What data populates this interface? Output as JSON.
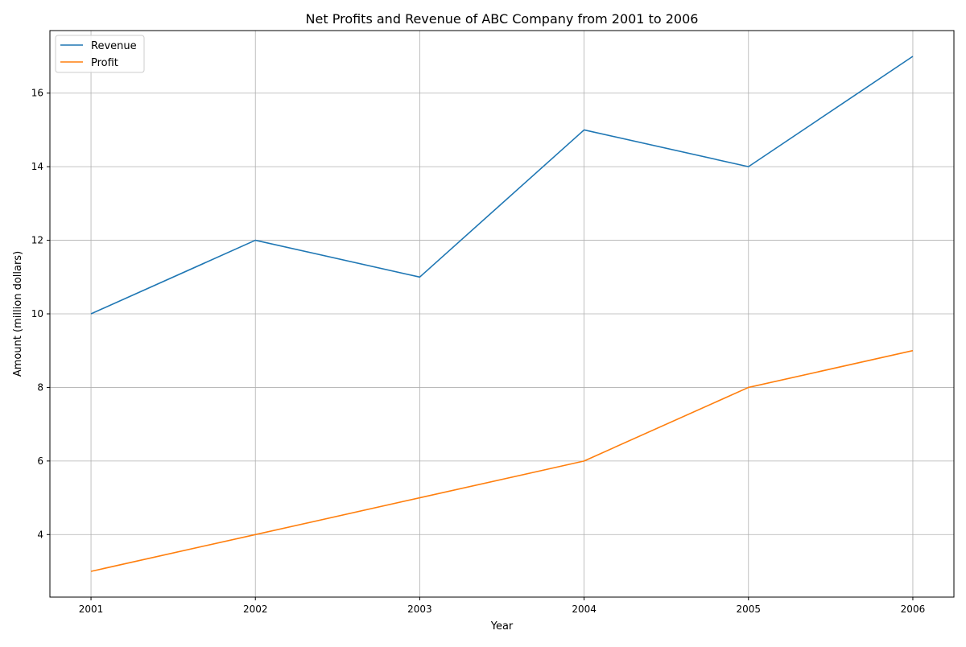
{
  "chart_data": {
    "type": "line",
    "title": "Net Profits and Revenue of ABC Company from 2001 to 2006",
    "xlabel": "Year",
    "ylabel": "Amount (million dollars)",
    "x": [
      "2001",
      "2002",
      "2003",
      "2004",
      "2005",
      "2006"
    ],
    "xlim": [
      2000.75,
      2006.25
    ],
    "ylim": [
      2.3,
      17.7
    ],
    "yticks": [
      "4",
      "6",
      "8",
      "10",
      "12",
      "14",
      "16"
    ],
    "grid": true,
    "legend_position": "upper-left",
    "series": [
      {
        "name": "Revenue",
        "color": "#1f77b4",
        "values": [
          10,
          12,
          11,
          15,
          14,
          17
        ]
      },
      {
        "name": "Profit",
        "color": "#ff7f0e",
        "values": [
          3,
          4,
          5,
          6,
          8,
          9
        ]
      }
    ]
  }
}
